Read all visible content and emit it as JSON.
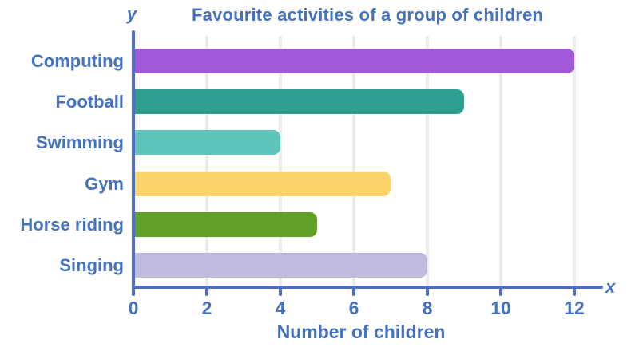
{
  "page": {
    "background": "#ffffff"
  },
  "chart_data": {
    "type": "bar",
    "orientation": "horizontal",
    "title": "Favourite activities of a group of children",
    "xlabel": "Number of children",
    "x_axis_symbol": "x",
    "y_axis_symbol": "y",
    "categories": [
      "Computing",
      "Football",
      "Swimming",
      "Gym",
      "Horse riding",
      "Singing"
    ],
    "values": [
      12,
      9,
      4,
      7,
      5,
      8
    ],
    "bar_colors": [
      "#a259d9",
      "#2f9e8f",
      "#5fc4bb",
      "#fdd469",
      "#61a127",
      "#c0bbdc"
    ],
    "xlim": [
      0,
      12
    ],
    "xticks": [
      0,
      2,
      4,
      6,
      8,
      10,
      12
    ],
    "grid": true,
    "legend": false,
    "text_color": "#4472bd",
    "axis_color": "#4f6fbc",
    "grid_color": "#ececec"
  }
}
